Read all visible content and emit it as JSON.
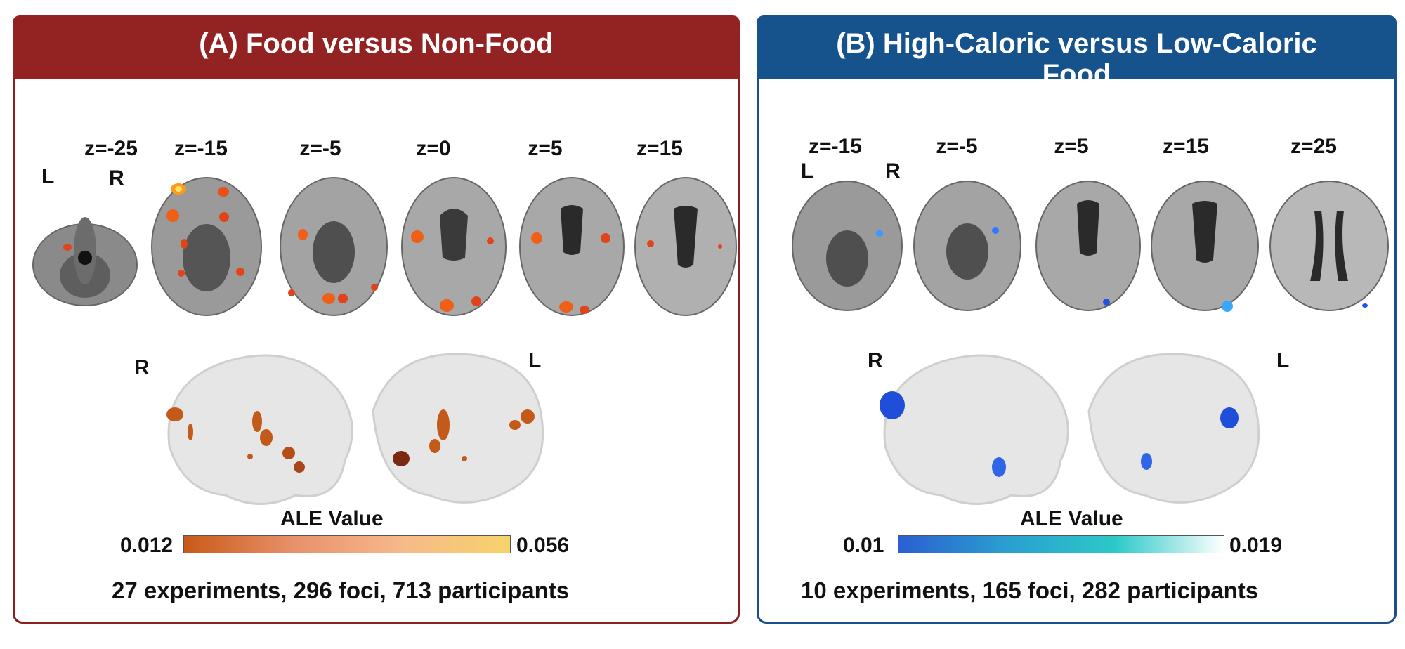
{
  "panel_a": {
    "title": "(A) Food versus Non-Food",
    "slices": [
      "z=-25",
      "z=-15",
      "z=-5",
      "z=0",
      "z=5",
      "z=15"
    ],
    "axial_left": "L",
    "axial_right": "R",
    "render_left": "R",
    "render_right": "L",
    "colorbar_title": "ALE Value",
    "colorbar_min": "0.012",
    "colorbar_max": "0.056",
    "colorbar_colors": [
      "#c85a17",
      "#f7d36b"
    ],
    "stats": "27 experiments, 296 foci, 713 participants"
  },
  "panel_b": {
    "title": "(B) High-Caloric versus Low-Caloric Food",
    "slices": [
      "z=-15",
      "z=-5",
      "z=5",
      "z=15",
      "z=25"
    ],
    "axial_left": "L",
    "axial_right": "R",
    "render_left": "R",
    "render_right": "L",
    "colorbar_title": "ALE Value",
    "colorbar_min": "0.01",
    "colorbar_max": "0.019",
    "colorbar_colors": [
      "#2b5fd0",
      "#2cc9c9",
      "#ffffff"
    ],
    "stats": "10 experiments, 165 foci, 282 participants"
  }
}
